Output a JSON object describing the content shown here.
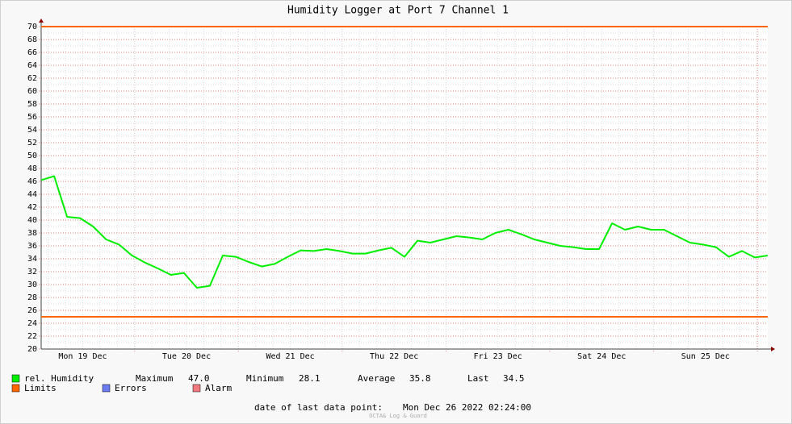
{
  "chart_data": {
    "type": "line",
    "title": "Humidity Logger at Port 7 Channel 1",
    "xlim": [
      0,
      168
    ],
    "xticks": [
      {
        "value": 9.6,
        "label": "Mon 19 Dec"
      },
      {
        "value": 33.6,
        "label": "Tue 20 Dec"
      },
      {
        "value": 57.6,
        "label": "Wed 21 Dec"
      },
      {
        "value": 81.6,
        "label": "Thu 22 Dec"
      },
      {
        "value": 105.6,
        "label": "Fri 23 Dec"
      },
      {
        "value": 129.6,
        "label": "Sat 24 Dec"
      },
      {
        "value": 153.6,
        "label": "Sun 25 Dec"
      }
    ],
    "ylim": [
      20,
      70
    ],
    "yticks": [
      20,
      22,
      24,
      26,
      28,
      30,
      32,
      34,
      36,
      38,
      40,
      42,
      44,
      46,
      48,
      50,
      52,
      54,
      56,
      58,
      60,
      62,
      64,
      66,
      68,
      70
    ],
    "grid": true,
    "series": [
      {
        "name": "rel. Humidity",
        "color": "#00ee00",
        "values": [
          46.2,
          46.8,
          40.5,
          40.3,
          39,
          37,
          36.2,
          34.5,
          33.4,
          32.5,
          31.5,
          31.8,
          29.5,
          29.8,
          34.5,
          34.3,
          33.5,
          32.8,
          33.2,
          34.3,
          35.3,
          35.2,
          35.5,
          35.2,
          34.8,
          34.8,
          35.3,
          35.7,
          34.3,
          36.8,
          36.5,
          37,
          37.5,
          37.3,
          37,
          38,
          38.5,
          37.8,
          37,
          36.5,
          36,
          35.8,
          35.5,
          35.5,
          39.5,
          38.5,
          39,
          38.5,
          38.5,
          37.5,
          36.5,
          36.2,
          35.8,
          34.3,
          35.2,
          34.2,
          34.5
        ]
      }
    ],
    "limits": {
      "name": "Limits",
      "color": "#ff6600",
      "values": [
        70,
        25
      ]
    },
    "stats": [
      {
        "label": "Maximum",
        "value": "47.0"
      },
      {
        "label": "Minimum",
        "value": "28.1"
      },
      {
        "label": "Average",
        "value": "35.8"
      },
      {
        "label": "Last",
        "value": "34.5"
      }
    ],
    "other_legend": [
      {
        "name": "Errors",
        "color": "#6a7cf0"
      },
      {
        "name": "Alarm",
        "color": "#f07a80"
      }
    ],
    "footer": {
      "label": "date of last data point:",
      "value": "Mon Dec 26 2022 02:24:00"
    },
    "watermark": "OCTA& Log & Guard"
  }
}
